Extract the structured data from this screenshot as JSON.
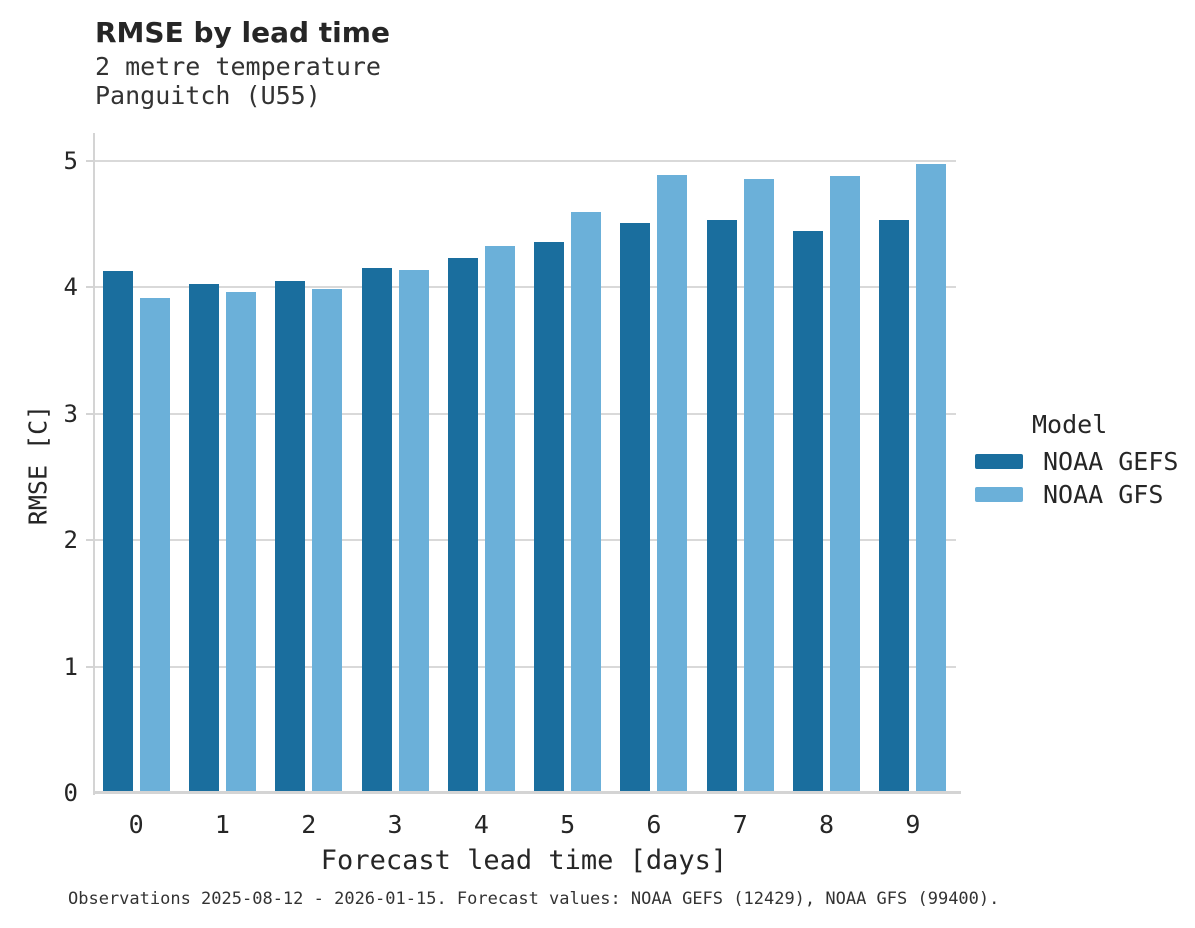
{
  "colors": {
    "gefs_dark_blue": "#1a6e9e",
    "gfs_light_blue": "#6bb0d9",
    "gridline": "#d9d9d9",
    "axis": "#d4d4d4",
    "text": "#262626"
  },
  "chart_data": {
    "type": "bar",
    "title": "RMSE by lead time",
    "subtitle_lines": [
      "2 metre temperature",
      "Panguitch (U55)"
    ],
    "xlabel": "Forecast lead time [days]",
    "ylabel": "RMSE [C]",
    "categories": [
      "0",
      "1",
      "2",
      "3",
      "4",
      "5",
      "6",
      "7",
      "8",
      "9"
    ],
    "series": [
      {
        "name": "NOAA GEFS",
        "color": "#1a6e9e",
        "values": [
          4.13,
          4.03,
          4.05,
          4.15,
          4.23,
          4.36,
          4.51,
          4.53,
          4.45,
          4.53
        ]
      },
      {
        "name": "NOAA GFS",
        "color": "#6bb0d9",
        "values": [
          3.92,
          3.96,
          3.99,
          4.14,
          4.33,
          4.6,
          4.89,
          4.86,
          4.88,
          4.98
        ]
      }
    ],
    "ylim": [
      0,
      5
    ],
    "yticks": [
      0,
      1,
      2,
      3,
      4,
      5
    ],
    "grid": "horizontal",
    "legend": {
      "title": "Model",
      "position": "right"
    }
  },
  "footer": {
    "text": "Observations 2025-08-12 - 2026-01-15. Forecast values: NOAA GEFS (12429), NOAA GFS (99400)."
  }
}
